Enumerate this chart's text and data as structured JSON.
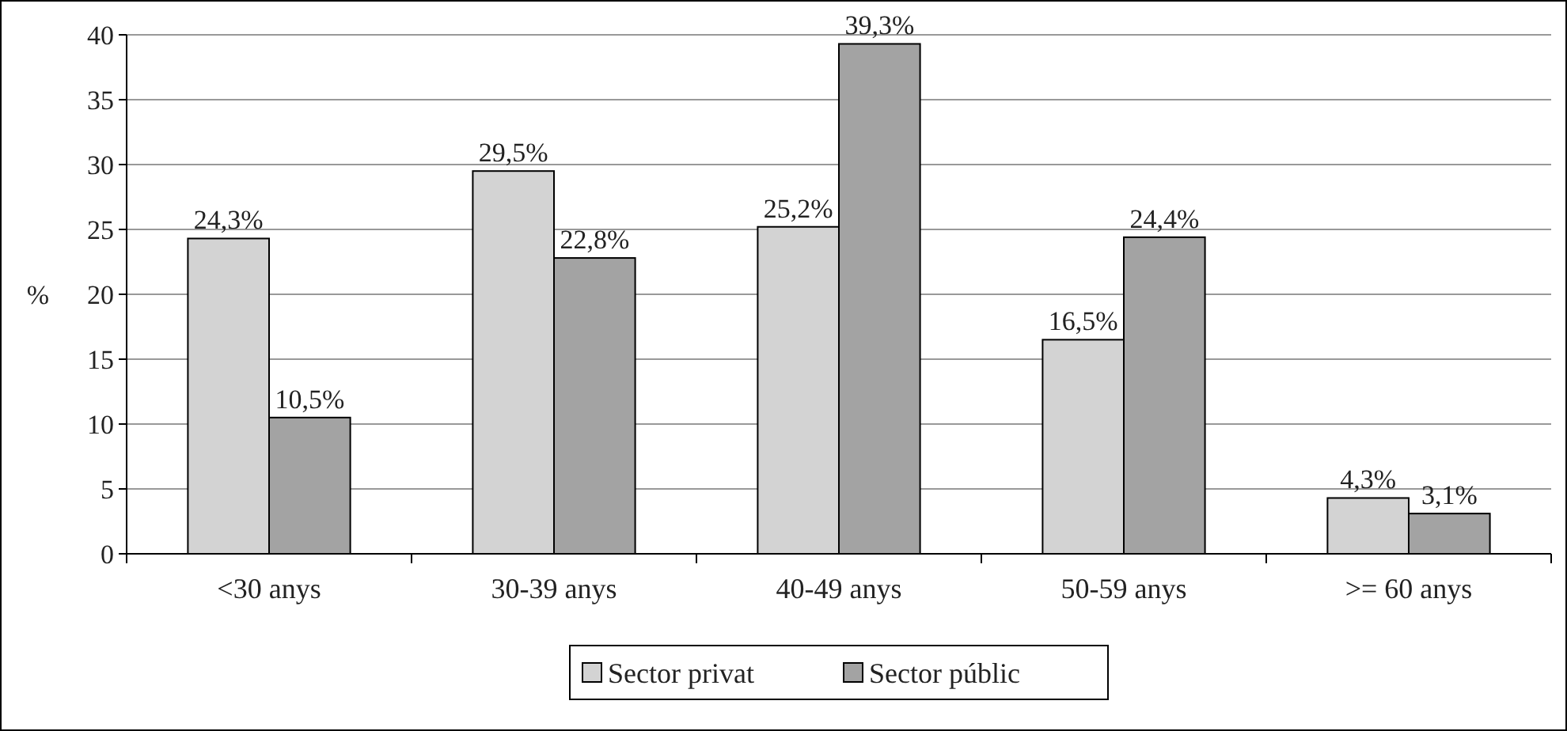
{
  "chart_data": {
    "type": "bar",
    "ylabel": "%",
    "categories": [
      "<30 anys",
      "30-39 anys",
      "40-49 anys",
      "50-59 anys",
      ">= 60 anys"
    ],
    "series": [
      {
        "name": "Sector privat",
        "color": "#d3d3d3",
        "values": [
          24.3,
          29.5,
          25.2,
          16.5,
          4.3
        ],
        "value_labels": [
          "24,3%",
          "29,5%",
          "25,2%",
          "16,5%",
          "4,3%"
        ]
      },
      {
        "name": "Sector públic",
        "color": "#a3a3a3",
        "values": [
          10.5,
          22.8,
          39.3,
          24.4,
          3.1
        ],
        "value_labels": [
          "10,5%",
          "22,8%",
          "39,3%",
          "24,4%",
          "3,1%"
        ]
      }
    ],
    "ylim": [
      0,
      40
    ],
    "yticks": [
      0,
      5,
      10,
      15,
      20,
      25,
      30,
      35,
      40
    ],
    "grid": "y",
    "legend": "bottom"
  }
}
